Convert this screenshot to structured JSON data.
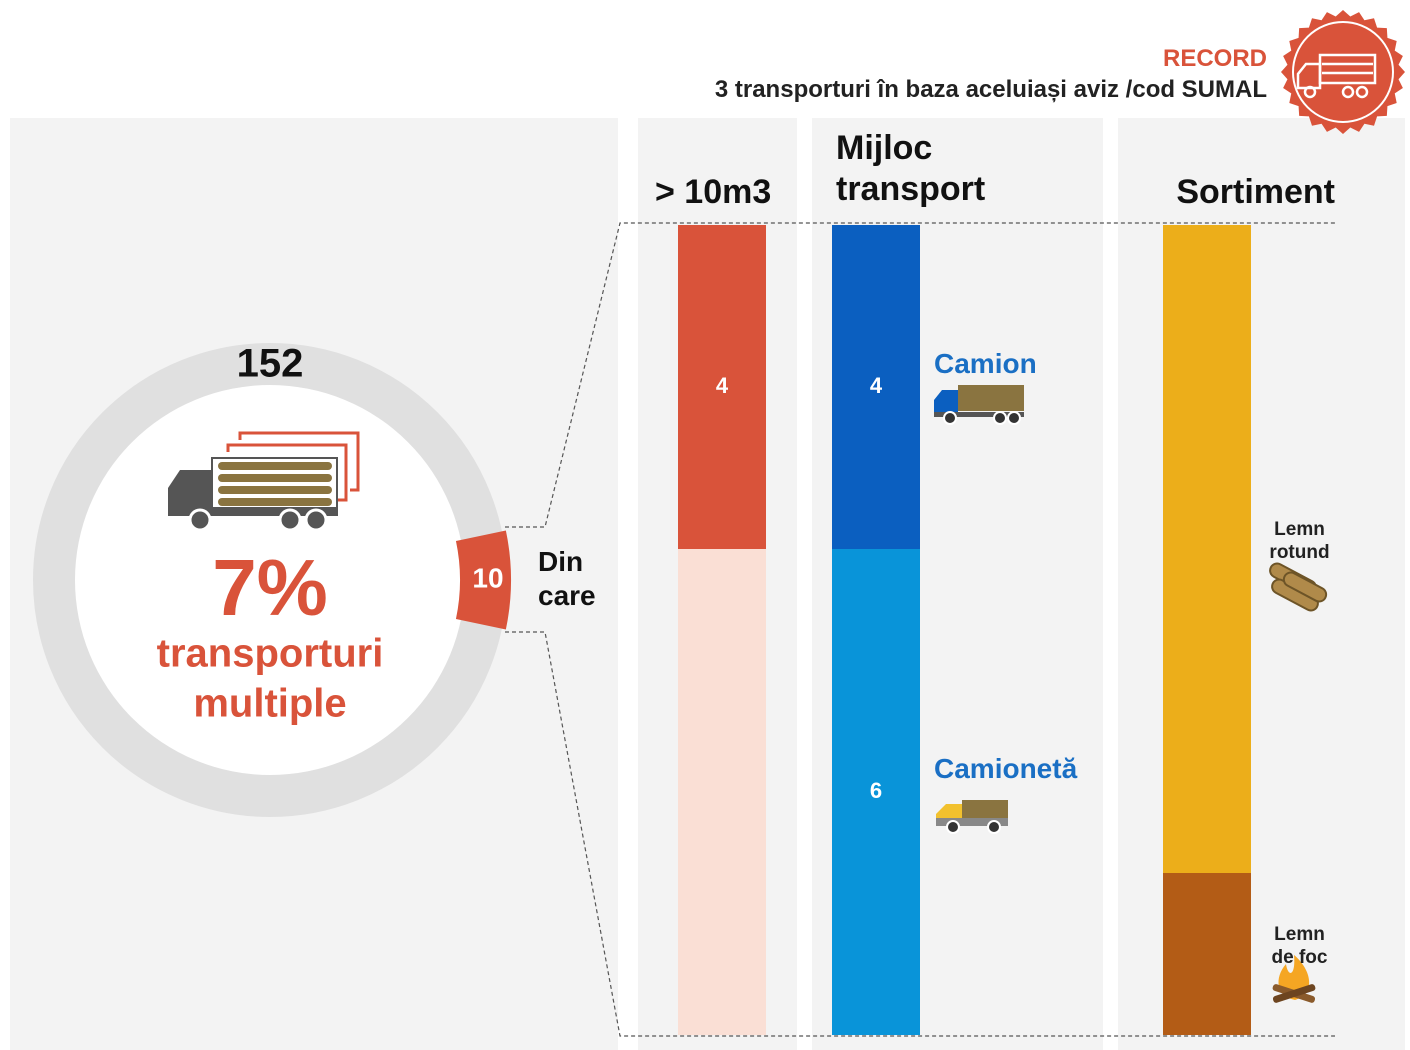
{
  "header": {
    "record": "RECORD",
    "subtitle": "3 transporturi în baza aceluiași aviz /cod SUMAL"
  },
  "chart_data": [
    {
      "type": "donut",
      "total": 152,
      "values": [
        10
      ],
      "color": "#d9533a",
      "ring_color": "#e0e0e0",
      "center_label": "7%",
      "caption": [
        "transporturi",
        "multiple"
      ],
      "callout": "Din care"
    },
    {
      "type": "stacked_bar",
      "title": "> 10m3",
      "values": [
        4,
        6
      ],
      "colors": [
        "#d9533a",
        "#fadfd5"
      ],
      "show_values": [
        true,
        false
      ],
      "ylim": [
        0,
        10
      ]
    },
    {
      "type": "stacked_bar",
      "title": "Mijloc transport",
      "categories": [
        "Camion",
        "Camionetă"
      ],
      "values": [
        4,
        6
      ],
      "colors": [
        "#0b5fc0",
        "#0994d9"
      ],
      "show_values": [
        true,
        true
      ],
      "ylim": [
        0,
        10
      ]
    },
    {
      "type": "stacked_bar",
      "title": "Sortiment",
      "categories": [
        "Lemn rotund",
        "Lemn de foc"
      ],
      "values": [
        8,
        2
      ],
      "colors": [
        "#ecae1a",
        "#b35c16"
      ],
      "show_values": [
        false,
        false
      ],
      "ylim": [
        0,
        10
      ]
    }
  ]
}
